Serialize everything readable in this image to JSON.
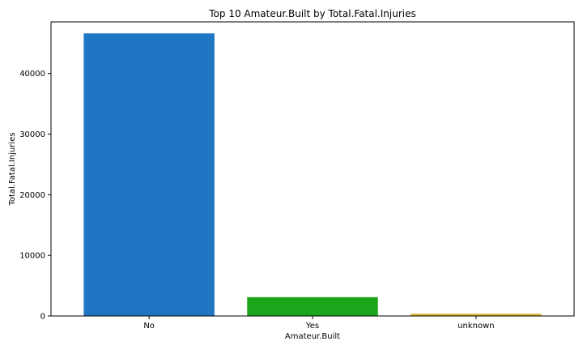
{
  "chart_data": {
    "type": "bar",
    "title": "Top 10 Amateur.Built by Total.Fatal.Injuries",
    "xlabel": "Amateur.Built",
    "ylabel": "Total.Fatal.Injuries",
    "categories": [
      "No",
      "Yes",
      "unknown"
    ],
    "values": [
      46600,
      3100,
      350
    ],
    "colors": [
      "#1f77c4",
      "#1aa51a",
      "#d4b42a"
    ],
    "ylim": [
      0,
      48500
    ],
    "yticks": [
      0,
      10000,
      20000,
      30000,
      40000
    ],
    "grid": false,
    "legend": "none"
  }
}
